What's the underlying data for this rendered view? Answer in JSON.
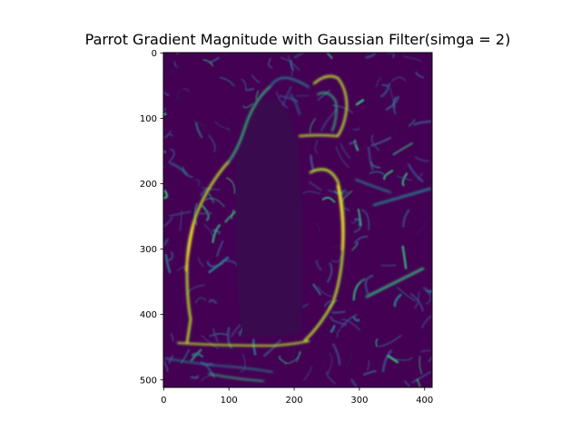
{
  "chart_data": {
    "type": "heatmap",
    "title": "Parrot Gradient Magnitude with Gaussian Filter(simga = 2)",
    "colormap": "viridis",
    "x_ticks": [
      0,
      100,
      200,
      300,
      400
    ],
    "y_ticks": [
      0,
      100,
      200,
      300,
      400,
      500
    ],
    "xlim": [
      0,
      412
    ],
    "ylim": [
      511,
      0
    ],
    "image_extent": [
      -0.5,
      411.5,
      511.5,
      -0.5
    ],
    "colors": {
      "background": "#440154",
      "dark": "#3b0a4f",
      "low": "#3e4989",
      "mid": "#26828e",
      "mid_high": "#35b779",
      "high": "#b5de2b",
      "peak": "#fde725"
    }
  }
}
